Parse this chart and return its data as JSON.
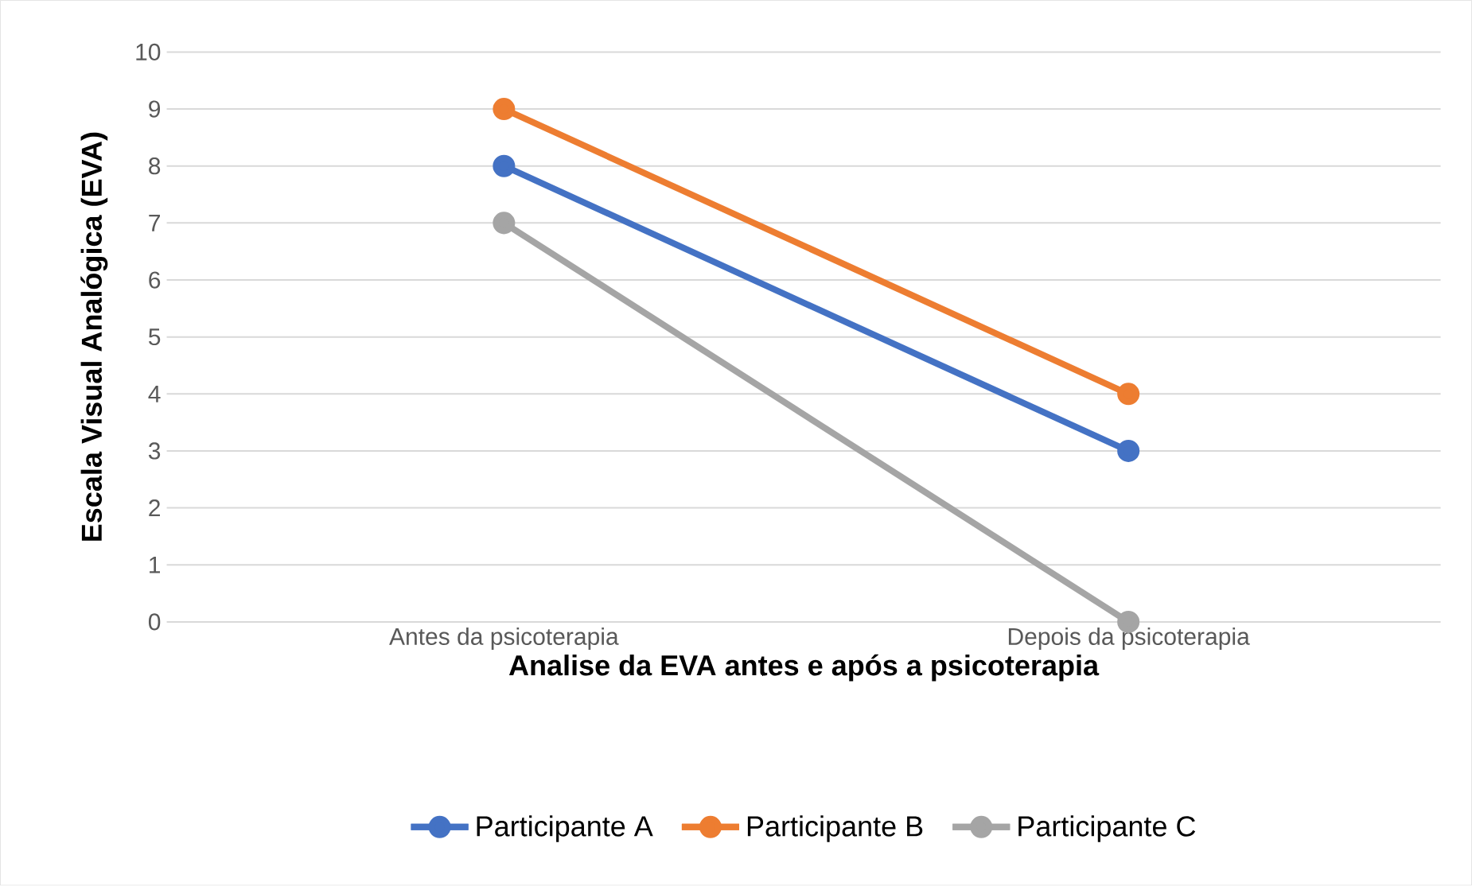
{
  "chart_data": {
    "type": "line",
    "xlabel": "Analise da EVA antes e após a psicoterapia",
    "ylabel": "Escala Visual Analógica (EVA)",
    "categories": [
      "Antes da psicoterapia",
      "Depois da psicoterapia"
    ],
    "series": [
      {
        "name": "Participante A",
        "color": "#4472c4",
        "values": [
          8,
          3
        ]
      },
      {
        "name": "Participante B",
        "color": "#ed7d31",
        "values": [
          9,
          4
        ]
      },
      {
        "name": "Participante C",
        "color": "#a5a5a5",
        "values": [
          7,
          0
        ]
      }
    ],
    "ylim": [
      0,
      10
    ],
    "yticks": [
      0,
      1,
      2,
      3,
      4,
      5,
      6,
      7,
      8,
      9,
      10
    ],
    "grid": "y",
    "legend": "bottom",
    "marker": "circle",
    "line_style": "solid"
  }
}
